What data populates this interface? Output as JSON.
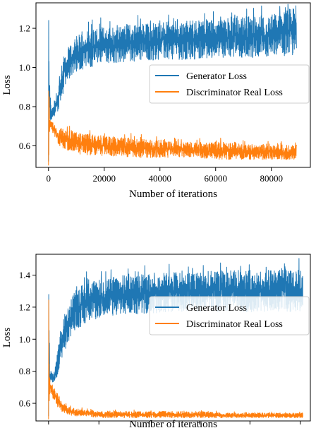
{
  "chart_data": [
    {
      "type": "line",
      "xlabel": "Number of iterations",
      "ylabel": "Loss",
      "xlim": [
        -4500,
        94000
      ],
      "ylim": [
        0.49,
        1.33
      ],
      "xticks": [
        0,
        20000,
        40000,
        60000,
        80000
      ],
      "yticks": [
        0.6,
        0.8,
        1.0,
        1.2
      ],
      "ytick_labels": [
        "0.6",
        "0.8",
        "1.0",
        "1.2"
      ],
      "legend_loc": "center-right",
      "grid": false,
      "series": [
        {
          "name": "Generator Loss",
          "color": "#1f77b4",
          "x_max": 89000,
          "envelope_x": [
            0,
            500,
            1000,
            2000,
            3000,
            4000,
            5000,
            6000,
            8000,
            10000,
            15000,
            20000,
            30000,
            40000,
            50000,
            60000,
            70000,
            80000,
            89000
          ],
          "envelope_low": [
            0.52,
            0.72,
            0.73,
            0.74,
            0.76,
            0.8,
            0.84,
            0.9,
            0.95,
            0.98,
            1.0,
            1.02,
            1.03,
            1.04,
            1.04,
            1.05,
            1.05,
            1.05,
            1.06
          ],
          "envelope_high": [
            1.29,
            0.9,
            0.78,
            0.82,
            0.86,
            0.95,
            1.05,
            1.08,
            1.12,
            1.16,
            1.2,
            1.21,
            1.22,
            1.23,
            1.24,
            1.25,
            1.26,
            1.27,
            1.31
          ]
        },
        {
          "name": "Discriminator Real Loss",
          "color": "#ff7f0e",
          "x_max": 89000,
          "envelope_x": [
            0,
            500,
            1000,
            2000,
            3000,
            4000,
            5000,
            6000,
            8000,
            10000,
            15000,
            20000,
            30000,
            40000,
            50000,
            60000,
            70000,
            80000,
            89000
          ],
          "envelope_low": [
            0.5,
            0.7,
            0.68,
            0.64,
            0.61,
            0.6,
            0.59,
            0.58,
            0.57,
            0.56,
            0.55,
            0.55,
            0.54,
            0.54,
            0.54,
            0.53,
            0.53,
            0.53,
            0.53
          ],
          "envelope_high": [
            0.9,
            0.74,
            0.73,
            0.71,
            0.7,
            0.69,
            0.69,
            0.68,
            0.68,
            0.67,
            0.66,
            0.65,
            0.64,
            0.63,
            0.62,
            0.62,
            0.61,
            0.61,
            0.6
          ]
        }
      ]
    },
    {
      "type": "line",
      "xlabel": "Number of iterations",
      "ylabel": "Loss",
      "xlim": [
        -5000,
        104000
      ],
      "ylim": [
        0.49,
        1.53
      ],
      "xticks": [
        0,
        20000,
        40000,
        60000,
        80000,
        100000
      ],
      "yticks": [
        0.6,
        0.8,
        1.0,
        1.2,
        1.4
      ],
      "ytick_labels": [
        "0.6",
        "0.8",
        "1.0",
        "1.2",
        "1.4"
      ],
      "legend_loc": "center-right",
      "grid": false,
      "series": [
        {
          "name": "Generator Loss",
          "color": "#1f77b4",
          "x_max": 101000,
          "envelope_x": [
            0,
            500,
            1000,
            2000,
            3000,
            4000,
            5000,
            6000,
            8000,
            10000,
            15000,
            20000,
            30000,
            40000,
            50000,
            60000,
            70000,
            80000,
            90000,
            101000
          ],
          "envelope_low": [
            0.52,
            0.72,
            0.74,
            0.72,
            0.74,
            0.78,
            0.84,
            0.9,
            0.98,
            1.05,
            1.1,
            1.13,
            1.15,
            1.16,
            1.17,
            1.17,
            1.17,
            1.17,
            1.17,
            1.17
          ],
          "envelope_high": [
            1.35,
            0.86,
            0.8,
            0.78,
            0.86,
            0.98,
            1.06,
            1.14,
            1.22,
            1.3,
            1.36,
            1.38,
            1.4,
            1.41,
            1.42,
            1.42,
            1.43,
            1.43,
            1.43,
            1.44
          ]
        },
        {
          "name": "Discriminator Real Loss",
          "color": "#ff7f0e",
          "x_max": 101000,
          "envelope_x": [
            0,
            500,
            1000,
            2000,
            3000,
            4000,
            5000,
            6000,
            8000,
            10000,
            15000,
            20000,
            30000,
            40000,
            50000,
            60000,
            70000,
            80000,
            90000,
            101000
          ],
          "envelope_low": [
            0.5,
            0.68,
            0.66,
            0.62,
            0.59,
            0.57,
            0.55,
            0.54,
            0.53,
            0.52,
            0.52,
            0.51,
            0.51,
            0.51,
            0.51,
            0.51,
            0.51,
            0.51,
            0.51,
            0.51
          ],
          "envelope_high": [
            1.33,
            0.74,
            0.72,
            0.7,
            0.68,
            0.65,
            0.62,
            0.6,
            0.58,
            0.57,
            0.56,
            0.55,
            0.55,
            0.55,
            0.55,
            0.55,
            0.54,
            0.54,
            0.54,
            0.54
          ]
        }
      ]
    }
  ]
}
